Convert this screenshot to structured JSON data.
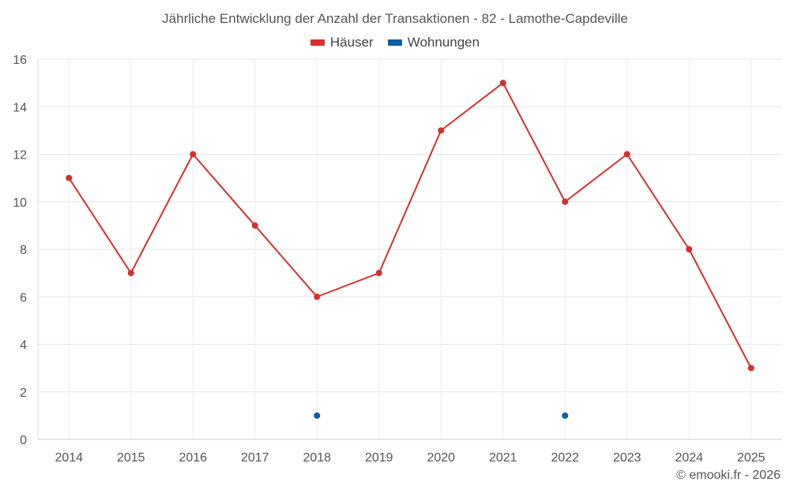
{
  "chart_data": {
    "type": "line",
    "title": "Jährliche Entwicklung der Anzahl der Transaktionen - 82 - Lamothe-Capdeville",
    "categories": [
      "2014",
      "2015",
      "2016",
      "2017",
      "2018",
      "2019",
      "2020",
      "2021",
      "2022",
      "2023",
      "2024",
      "2025"
    ],
    "series": [
      {
        "name": "Häuser",
        "color": "#d32f2f",
        "values": [
          11,
          7,
          12,
          9,
          6,
          7,
          13,
          15,
          10,
          12,
          8,
          3
        ]
      },
      {
        "name": "Wohnungen",
        "color": "#0d5fa0",
        "values": [
          null,
          null,
          null,
          null,
          1,
          null,
          null,
          null,
          1,
          null,
          null,
          null
        ]
      }
    ],
    "ylim": [
      0,
      16
    ],
    "yticks": [
      "0",
      "2",
      "4",
      "6",
      "8",
      "10",
      "12",
      "14",
      "16"
    ],
    "grid": true,
    "legend": "top-center"
  },
  "legend": {
    "houses": "Häuser",
    "apartments": "Wohnungen"
  },
  "credit": "© emooki.fr - 2026"
}
